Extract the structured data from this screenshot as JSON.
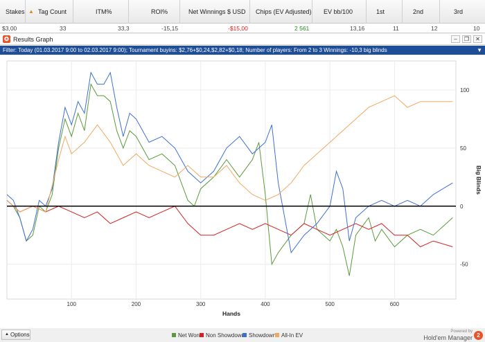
{
  "stats": {
    "columns": [
      {
        "key": "stakes",
        "label": "Stakes",
        "value": "$3,00"
      },
      {
        "key": "tag_count",
        "label": "Tag Count",
        "value": "33"
      },
      {
        "key": "itm",
        "label": "ITM%",
        "value": "33,3"
      },
      {
        "key": "roi",
        "label": "ROI%",
        "value": "-15,15"
      },
      {
        "key": "net_winnings",
        "label": "Net Winnings $ USD",
        "value": "-$15,00"
      },
      {
        "key": "chips_ev",
        "label": "Chips (EV Adjusted)",
        "value": "2 561"
      },
      {
        "key": "ev_bb",
        "label": "EV bb/100",
        "value": "13,16"
      },
      {
        "key": "first",
        "label": "1st",
        "value": "11"
      },
      {
        "key": "second",
        "label": "2nd",
        "value": "12"
      },
      {
        "key": "third",
        "label": "3rd",
        "value": "10"
      }
    ],
    "colors": {
      "negative": "#d42020",
      "positive": "#1e8a1e"
    }
  },
  "window": {
    "title": "Results Graph",
    "app_icon": "holdem-manager-icon",
    "buttons": [
      "minimize",
      "restore",
      "close"
    ]
  },
  "filter": {
    "text": "Filter: Today (01.03.2017 9:00 to 02.03.2017 9:00); Tournament buyins: $2,76+$0,24,$2,82+$0,18; Number of players: From 2 to 3 Winnings: -10,3 big blinds"
  },
  "bottom": {
    "options_label": "Options",
    "powered_by": "Powered by",
    "brand": "Hold'em Manager"
  },
  "chart_data": {
    "type": "line",
    "xlabel": "Hands",
    "ylabel": "Big Blinds",
    "xlim": [
      0,
      695
    ],
    "ylim": [
      -80,
      125
    ],
    "xticks": [
      100,
      200,
      300,
      400,
      500,
      600
    ],
    "yticks": [
      100,
      50,
      0,
      -50
    ],
    "grid": true,
    "series": [
      {
        "name": "Net Won",
        "color": "#5a9a3a",
        "x": [
          0,
          10,
          20,
          30,
          40,
          50,
          60,
          70,
          80,
          90,
          100,
          110,
          120,
          130,
          140,
          150,
          160,
          170,
          180,
          190,
          200,
          220,
          240,
          260,
          280,
          290,
          300,
          320,
          340,
          360,
          380,
          390,
          400,
          410,
          420,
          440,
          460,
          470,
          480,
          500,
          510,
          520,
          530,
          540,
          560,
          570,
          580,
          600,
          620,
          640,
          660,
          690
        ],
        "y": [
          5,
          0,
          -10,
          -30,
          -25,
          0,
          -5,
          10,
          50,
          75,
          60,
          80,
          65,
          105,
          95,
          95,
          90,
          65,
          50,
          65,
          60,
          40,
          45,
          35,
          5,
          0,
          15,
          25,
          40,
          25,
          40,
          55,
          10,
          -50,
          -40,
          -25,
          -15,
          10,
          -20,
          -30,
          -20,
          -35,
          -60,
          -25,
          -10,
          -30,
          -20,
          -35,
          -25,
          -20,
          -25,
          -10
        ]
      },
      {
        "name": "Non Showdown",
        "color": "#d42020",
        "x": [
          0,
          20,
          40,
          60,
          80,
          100,
          120,
          140,
          160,
          180,
          200,
          220,
          240,
          260,
          280,
          300,
          320,
          340,
          360,
          380,
          400,
          420,
          440,
          460,
          480,
          500,
          520,
          540,
          560,
          580,
          600,
          620,
          640,
          660,
          690
        ],
        "y": [
          5,
          -5,
          0,
          -5,
          0,
          -5,
          -10,
          -5,
          -15,
          -10,
          -5,
          -10,
          -5,
          0,
          -15,
          -25,
          -25,
          -20,
          -15,
          -20,
          -15,
          -20,
          -25,
          -15,
          -20,
          -25,
          -20,
          -15,
          -20,
          -15,
          -25,
          -25,
          -35,
          -30,
          -35
        ]
      },
      {
        "name": "Showdown",
        "color": "#3d6fd0",
        "x": [
          0,
          10,
          20,
          30,
          40,
          50,
          60,
          70,
          80,
          90,
          100,
          110,
          120,
          130,
          140,
          150,
          160,
          170,
          180,
          190,
          200,
          220,
          240,
          260,
          280,
          300,
          320,
          340,
          360,
          380,
          400,
          410,
          420,
          440,
          460,
          480,
          500,
          510,
          520,
          530,
          540,
          560,
          580,
          600,
          620,
          640,
          660,
          690
        ],
        "y": [
          10,
          5,
          -10,
          -30,
          -20,
          5,
          0,
          15,
          55,
          85,
          70,
          90,
          80,
          115,
          105,
          105,
          115,
          85,
          60,
          80,
          75,
          55,
          60,
          50,
          30,
          20,
          30,
          50,
          60,
          45,
          55,
          70,
          20,
          -40,
          -25,
          -15,
          0,
          30,
          15,
          -30,
          -10,
          0,
          5,
          0,
          5,
          0,
          10,
          20
        ]
      },
      {
        "name": "All-In EV",
        "color": "#f0a860",
        "x": [
          0,
          20,
          40,
          60,
          80,
          90,
          100,
          120,
          140,
          160,
          180,
          200,
          220,
          240,
          260,
          280,
          300,
          320,
          340,
          360,
          380,
          400,
          420,
          440,
          460,
          480,
          500,
          520,
          540,
          560,
          580,
          600,
          620,
          640,
          660,
          690
        ],
        "y": [
          5,
          -5,
          0,
          -5,
          40,
          60,
          45,
          55,
          70,
          55,
          35,
          45,
          35,
          30,
          25,
          35,
          25,
          25,
          35,
          20,
          10,
          5,
          10,
          20,
          35,
          45,
          55,
          65,
          75,
          85,
          90,
          95,
          85,
          90,
          90,
          90
        ]
      }
    ]
  }
}
